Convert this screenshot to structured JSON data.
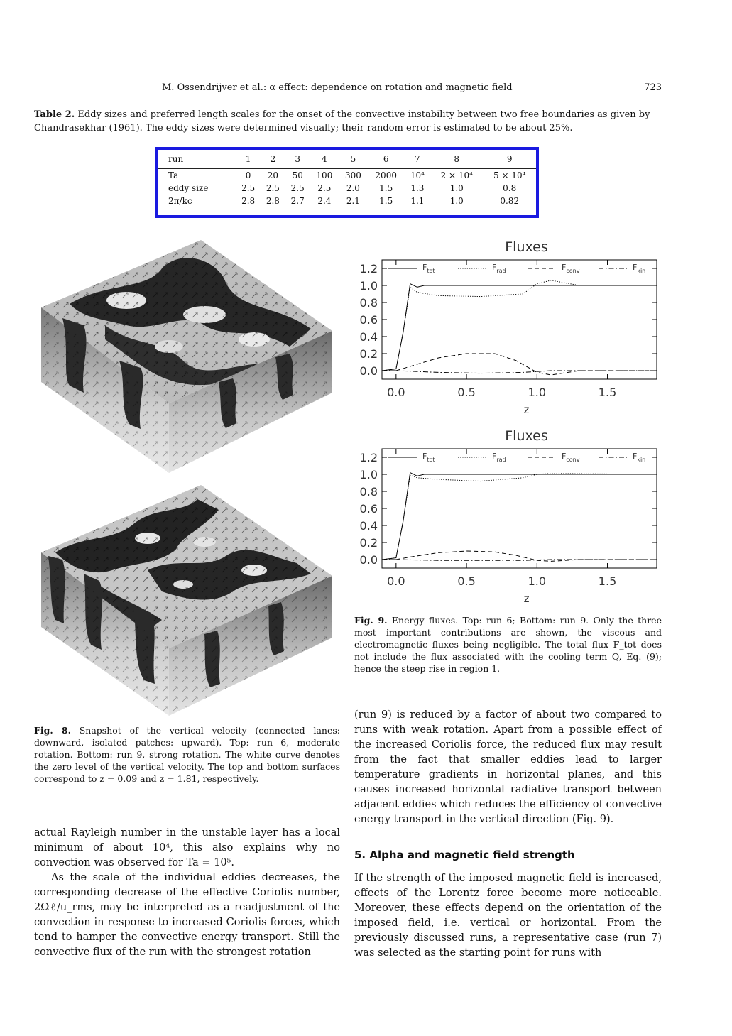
{
  "header": {
    "title": "M. Ossendrijver et al.: α effect: dependence on rotation and magnetic field",
    "page": "723"
  },
  "table2": {
    "label": "Table 2.",
    "caption": "Eddy sizes and preferred length scales for the onset of the convective instability between two free boundaries as given by Chandrasekhar (1961). The eddy sizes were determined visually; their random error is estimated to be about 25%.",
    "rows": [
      [
        "run",
        "1",
        "2",
        "3",
        "4",
        "5",
        "6",
        "7",
        "8",
        "9"
      ],
      [
        "Ta",
        "0",
        "20",
        "50",
        "100",
        "300",
        "2000",
        "10⁴",
        "2 × 10⁴",
        "5 × 10⁴"
      ],
      [
        "eddy size",
        "2.5",
        "2.5",
        "2.5",
        "2.5",
        "2.0",
        "1.5",
        "1.3",
        "1.0",
        "0.8"
      ],
      [
        "2π/kc",
        "2.8",
        "2.8",
        "2.7",
        "2.4",
        "2.1",
        "1.5",
        "1.1",
        "1.0",
        "0.82"
      ]
    ]
  },
  "fig8": {
    "label": "Fig. 8.",
    "caption": "Snapshot of the vertical velocity (connected lanes: downward, isolated patches: upward). Top: run 6, moderate rotation. Bottom: run 9, strong rotation. The white curve denotes the zero level of the vertical velocity. The top and bottom surfaces correspond to z = 0.09 and z = 1.81, respectively."
  },
  "fig9": {
    "label": "Fig. 9.",
    "caption": "Energy fluxes. Top: run 6; Bottom: run 9. Only the three most important contributions are shown, the viscous and electromagnetic fluxes being negligible. The total flux F_tot does not include the flux associated with the cooling term Q, Eq. (9); hence the steep rise in region 1."
  },
  "chart_data": [
    {
      "type": "line",
      "title": "Fluxes",
      "xlabel": "z",
      "ylabel": "",
      "xlim": [
        -0.1,
        1.85
      ],
      "ylim": [
        -0.1,
        1.3
      ],
      "xticks": [
        "0.0",
        "0.5",
        "1.0",
        "1.5"
      ],
      "yticks": [
        "0.0",
        "0.2",
        "0.4",
        "0.6",
        "0.8",
        "1.0",
        "1.2"
      ],
      "legend": [
        "F_tot",
        "F_rad",
        "F_conv",
        "F_kin"
      ],
      "series": [
        {
          "name": "F_tot",
          "x": [
            -0.1,
            0.0,
            0.05,
            0.1,
            0.15,
            0.2,
            0.5,
            1.0,
            1.5,
            1.85
          ],
          "values": [
            0.0,
            0.02,
            0.45,
            1.02,
            0.98,
            1.0,
            1.0,
            1.0,
            1.0,
            1.0
          ]
        },
        {
          "name": "F_rad",
          "x": [
            -0.1,
            0.0,
            0.05,
            0.1,
            0.15,
            0.3,
            0.6,
            0.9,
            1.0,
            1.1,
            1.3,
            1.85
          ],
          "values": [
            0.0,
            0.02,
            0.45,
            0.98,
            0.92,
            0.88,
            0.87,
            0.9,
            1.02,
            1.06,
            1.0,
            1.0
          ]
        },
        {
          "name": "F_conv",
          "x": [
            -0.1,
            0.0,
            0.1,
            0.3,
            0.5,
            0.7,
            0.85,
            1.0,
            1.1,
            1.3,
            1.85
          ],
          "values": [
            0.0,
            0.0,
            0.05,
            0.15,
            0.2,
            0.2,
            0.12,
            -0.02,
            -0.05,
            0.0,
            0.0
          ]
        },
        {
          "name": "F_kin",
          "x": [
            -0.1,
            0.0,
            0.3,
            0.6,
            0.9,
            1.1,
            1.3,
            1.85
          ],
          "values": [
            0.0,
            0.0,
            -0.02,
            -0.03,
            -0.02,
            0.0,
            0.0,
            0.0
          ]
        }
      ]
    },
    {
      "type": "line",
      "title": "Fluxes",
      "xlabel": "z",
      "ylabel": "",
      "xlim": [
        -0.1,
        1.85
      ],
      "ylim": [
        -0.1,
        1.3
      ],
      "xticks": [
        "0.0",
        "0.5",
        "1.0",
        "1.5"
      ],
      "yticks": [
        "0.0",
        "0.2",
        "0.4",
        "0.6",
        "0.8",
        "1.0",
        "1.2"
      ],
      "legend": [
        "F_tot",
        "F_rad",
        "F_conv",
        "F_kin"
      ],
      "series": [
        {
          "name": "F_tot",
          "x": [
            -0.1,
            0.0,
            0.05,
            0.1,
            0.15,
            0.2,
            0.5,
            1.0,
            1.5,
            1.85
          ],
          "values": [
            0.0,
            0.02,
            0.45,
            1.02,
            0.98,
            1.0,
            1.0,
            1.0,
            1.0,
            1.0
          ]
        },
        {
          "name": "F_rad",
          "x": [
            -0.1,
            0.0,
            0.05,
            0.1,
            0.15,
            0.3,
            0.6,
            0.9,
            1.0,
            1.1,
            1.85
          ],
          "values": [
            0.0,
            0.02,
            0.45,
            0.99,
            0.96,
            0.94,
            0.92,
            0.96,
            1.0,
            1.01,
            1.0
          ]
        },
        {
          "name": "F_conv",
          "x": [
            -0.1,
            0.0,
            0.1,
            0.3,
            0.5,
            0.7,
            0.85,
            1.0,
            1.1,
            1.3,
            1.85
          ],
          "values": [
            0.0,
            0.0,
            0.03,
            0.08,
            0.1,
            0.09,
            0.05,
            -0.01,
            -0.02,
            0.0,
            0.0
          ]
        },
        {
          "name": "F_kin",
          "x": [
            -0.1,
            0.0,
            0.3,
            0.6,
            0.9,
            1.1,
            1.3,
            1.85
          ],
          "values": [
            0.0,
            0.0,
            -0.01,
            -0.01,
            -0.01,
            0.0,
            0.0,
            0.0
          ]
        }
      ]
    }
  ],
  "text": {
    "right_col_p1": "(run 9) is reduced by a factor of about two compared to runs with weak rotation. Apart from a possible effect of the increased Coriolis force, the reduced flux may result from the fact that smaller eddies lead to larger temperature gradients in horizontal planes, and this causes increased horizontal radiative transport between adjacent eddies which reduces the efficiency of convective energy transport in the vertical direction (Fig. 9).",
    "section_heading": "5. Alpha and magnetic field strength",
    "right_col_p2": "If the strength of the imposed magnetic field is increased, effects of the Lorentz force become more noticeable. Moreover, these effects depend on the orientation of the imposed field, i.e. vertical or horizontal. From the previously discussed runs, a representative case (run 7) was selected as the starting point for runs with",
    "left_col_p1": "actual Rayleigh number in the unstable layer has a local minimum of about 10⁴, this also explains why no convection was observed for Ta = 10⁵.",
    "left_col_p2": "As the scale of the individual eddies decreases, the corresponding decrease of the effective Coriolis number, 2Ωℓ/u_rms, may be interpreted as a readjustment of the convection in response to increased Coriolis forces, which tend to hamper the convective energy transport. Still the convective flux of the run with the strongest rotation"
  }
}
